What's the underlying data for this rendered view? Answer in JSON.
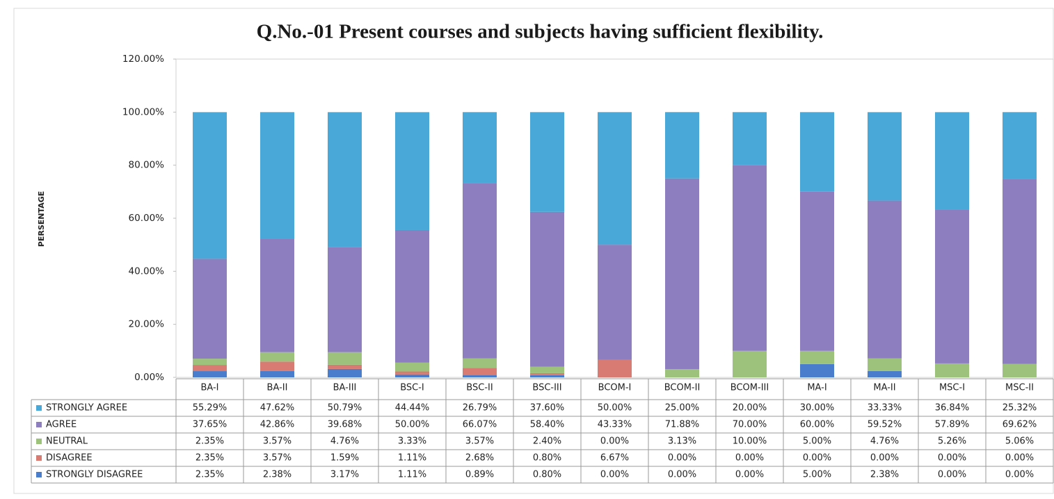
{
  "chart_data": {
    "type": "stacked_bar",
    "title": "Q.No.-01 Present courses and subjects having sufficient flexibility.",
    "y_label": "PERSENTAGE",
    "categories": [
      "BA-I",
      "BA-II",
      "BA-III",
      "BSC-I",
      "BSC-II",
      "BSC-III",
      "BCOM-I",
      "BCOM-II",
      "BCOM-III",
      "MA-I",
      "MA-II",
      "MSC-I",
      "MSC-II"
    ],
    "ylim": [
      0,
      120
    ],
    "yticks": [
      {
        "value": 0,
        "label": "0.00%"
      },
      {
        "value": 20,
        "label": "20.00%"
      },
      {
        "value": 40,
        "label": "40.00%"
      },
      {
        "value": 60,
        "label": "60.00%"
      },
      {
        "value": 80,
        "label": "80.00%"
      },
      {
        "value": 100,
        "label": "100.00%"
      },
      {
        "value": 120,
        "label": "120.00%"
      }
    ],
    "grid": false,
    "series": [
      {
        "name": "STRONGLY AGREE",
        "color": "#4aa8d8",
        "values": [
          55.29,
          47.62,
          50.79,
          44.44,
          26.79,
          37.6,
          50,
          25,
          20,
          30,
          33.33,
          36.84,
          25.32
        ],
        "value_labels": [
          "55.29%",
          "47.62%",
          "50.79%",
          "44.44%",
          "26.79%",
          "37.60%",
          "50.00%",
          "25.00%",
          "20.00%",
          "30.00%",
          "33.33%",
          "36.84%",
          "25.32%"
        ]
      },
      {
        "name": "AGREE",
        "color": "#8c7ebf",
        "values": [
          37.65,
          42.86,
          39.68,
          50,
          66.07,
          58.4,
          43.33,
          71.88,
          70,
          60,
          59.52,
          57.89,
          69.62
        ],
        "value_labels": [
          "37.65%",
          "42.86%",
          "39.68%",
          "50.00%",
          "66.07%",
          "58.40%",
          "43.33%",
          "71.88%",
          "70.00%",
          "60.00%",
          "59.52%",
          "57.89%",
          "69.62%"
        ]
      },
      {
        "name": "NEUTRAL",
        "color": "#9cc27c",
        "values": [
          2.35,
          3.57,
          4.76,
          3.33,
          3.57,
          2.4,
          0,
          3.13,
          10,
          5,
          4.76,
          5.26,
          5.06
        ],
        "value_labels": [
          "2.35%",
          "3.57%",
          "4.76%",
          "3.33%",
          "3.57%",
          "2.40%",
          "0.00%",
          "3.13%",
          "10.00%",
          "5.00%",
          "4.76%",
          "5.26%",
          "5.06%"
        ]
      },
      {
        "name": "DISAGREE",
        "color": "#d87b72",
        "values": [
          2.35,
          3.57,
          1.59,
          1.11,
          2.68,
          0.8,
          6.67,
          0,
          0,
          0,
          0,
          0,
          0
        ],
        "value_labels": [
          "2.35%",
          "3.57%",
          "1.59%",
          "1.11%",
          "2.68%",
          "0.80%",
          "6.67%",
          "0.00%",
          "0.00%",
          "0.00%",
          "0.00%",
          "0.00%",
          "0.00%"
        ]
      },
      {
        "name": "STRONGLY DISAGREE",
        "color": "#4a7dcb",
        "values": [
          2.35,
          2.38,
          3.17,
          1.11,
          0.89,
          0.8,
          0,
          0,
          0,
          5,
          2.38,
          0,
          0
        ],
        "value_labels": [
          "2.35%",
          "2.38%",
          "3.17%",
          "1.11%",
          "0.89%",
          "0.80%",
          "0.00%",
          "0.00%",
          "0.00%",
          "5.00%",
          "2.38%",
          "0.00%",
          "0.00%"
        ]
      }
    ]
  }
}
